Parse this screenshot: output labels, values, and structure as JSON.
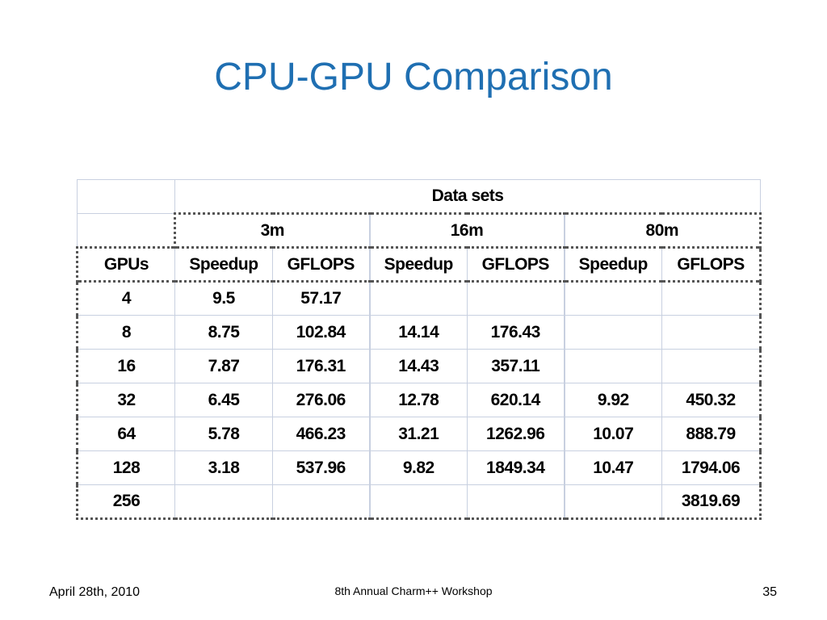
{
  "slide": {
    "title": "CPU-GPU Comparison"
  },
  "table": {
    "top_header": "Data sets",
    "datasets": [
      "3m",
      "16m",
      "80m"
    ],
    "column_headers": [
      "GPUs",
      "Speedup",
      "GFLOPS",
      "Speedup",
      "GFLOPS",
      "Speedup",
      "GFLOPS"
    ],
    "rows": [
      [
        "4",
        "9.5",
        "57.17",
        "",
        "",
        "",
        ""
      ],
      [
        "8",
        "8.75",
        "102.84",
        "14.14",
        "176.43",
        "",
        ""
      ],
      [
        "16",
        "7.87",
        "176.31",
        "14.43",
        "357.11",
        "",
        ""
      ],
      [
        "32",
        "6.45",
        "276.06",
        "12.78",
        "620.14",
        "9.92",
        "450.32"
      ],
      [
        "64",
        "5.78",
        "466.23",
        "31.21",
        "1262.96",
        "10.07",
        "888.79"
      ],
      [
        "128",
        "3.18",
        "537.96",
        "9.82",
        "1849.34",
        "10.47",
        "1794.06"
      ],
      [
        "256",
        "",
        "",
        "",
        "",
        "",
        "3819.69"
      ]
    ]
  },
  "footer": {
    "date": "April 28th, 2010",
    "event": "8th Annual Charm++ Workshop",
    "page_number": "35"
  }
}
